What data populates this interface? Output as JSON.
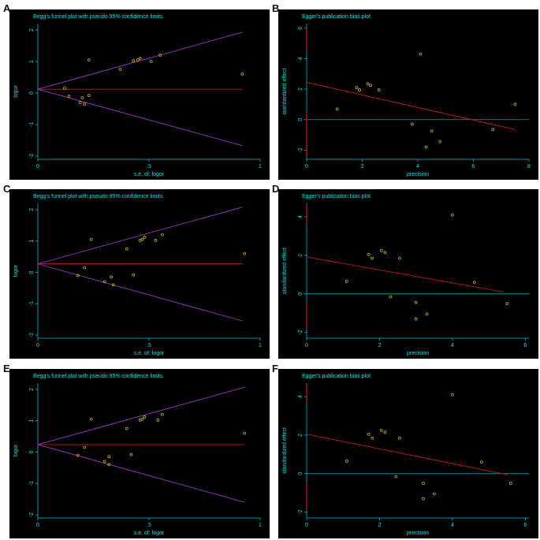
{
  "colors": {
    "background": "#000000",
    "text": "#00e5ee",
    "axis": "#00bcd4",
    "funnel_lines": "#a033c8",
    "reference_line": "#c41a1a",
    "regression_line": "#c41a1a",
    "zero_line": "#00a0b0",
    "points": "#c8b000"
  },
  "chart_data": [
    {
      "panel": "A",
      "type": "scatter",
      "title": "Begg's funnel plot with pseudo 95% confidence limits",
      "xlabel": "s.e. of: logor",
      "ylabel": "logor",
      "xlim": [
        0,
        1
      ],
      "ylim": [
        -2.1,
        2.2
      ],
      "xticks": [
        0,
        0.5,
        1
      ],
      "xtick_labels": [
        "0",
        ".5",
        "1"
      ],
      "yticks": [
        -2,
        -1,
        0,
        1,
        2
      ],
      "ytick_labels": [
        "-2",
        "-1",
        "0",
        "1",
        "2"
      ],
      "reference_value": 0.12,
      "funnel_x_end": 0.92,
      "funnel_upper_end": 1.93,
      "funnel_lower_end": -1.67,
      "points": [
        {
          "x": 0.12,
          "y": 0.15
        },
        {
          "x": 0.14,
          "y": -0.1
        },
        {
          "x": 0.19,
          "y": -0.3
        },
        {
          "x": 0.2,
          "y": -0.15
        },
        {
          "x": 0.21,
          "y": -0.35
        },
        {
          "x": 0.23,
          "y": -0.08
        },
        {
          "x": 0.23,
          "y": 1.05
        },
        {
          "x": 0.37,
          "y": 0.75
        },
        {
          "x": 0.43,
          "y": 1.02
        },
        {
          "x": 0.45,
          "y": 1.05
        },
        {
          "x": 0.46,
          "y": 1.1
        },
        {
          "x": 0.51,
          "y": 1.0
        },
        {
          "x": 0.55,
          "y": 1.2
        },
        {
          "x": 0.92,
          "y": 0.6
        }
      ]
    },
    {
      "panel": "B",
      "type": "scatter",
      "title": "Egger's publication bias plot",
      "xlabel": "precision",
      "ylabel": "standardized effect",
      "xlim": [
        0,
        8
      ],
      "ylim": [
        -2.6,
        6.3
      ],
      "xticks": [
        0,
        2,
        4,
        6,
        8
      ],
      "xtick_labels": [
        "0",
        "2",
        "4",
        "6",
        "8"
      ],
      "yticks": [
        -2,
        0,
        2,
        4,
        6
      ],
      "ytick_labels": [
        "-2",
        "0",
        "2",
        "4",
        "6"
      ],
      "ci_segments": [
        [
          4.5,
          6
        ],
        [
          -2.5,
          0.4
        ]
      ],
      "regression": [
        {
          "x": 0,
          "y": 2.45
        },
        {
          "x": 7.5,
          "y": -0.65
        }
      ],
      "points": [
        {
          "x": 1.1,
          "y": 0.7
        },
        {
          "x": 1.8,
          "y": 2.1
        },
        {
          "x": 1.9,
          "y": 1.95
        },
        {
          "x": 2.2,
          "y": 2.35
        },
        {
          "x": 2.3,
          "y": 2.25
        },
        {
          "x": 2.6,
          "y": 1.95
        },
        {
          "x": 3.8,
          "y": -0.3
        },
        {
          "x": 4.1,
          "y": 4.3
        },
        {
          "x": 4.3,
          "y": -1.8
        },
        {
          "x": 4.5,
          "y": -0.75
        },
        {
          "x": 4.8,
          "y": -1.45
        },
        {
          "x": 6.7,
          "y": -0.65
        },
        {
          "x": 7.5,
          "y": 1.0
        }
      ]
    },
    {
      "panel": "C",
      "type": "scatter",
      "title": "Begg's funnel plot with pseudo 95% confidence limits",
      "xlabel": "s.e. of: logor",
      "ylabel": "logor",
      "xlim": [
        0,
        1
      ],
      "ylim": [
        -2.1,
        2.2
      ],
      "xticks": [
        0,
        0.5,
        1
      ],
      "xtick_labels": [
        "0",
        ".5",
        "1"
      ],
      "yticks": [
        -2,
        -1,
        0,
        1,
        2
      ],
      "ytick_labels": [
        "-2",
        "-1",
        "0",
        "1",
        "2"
      ],
      "reference_value": 0.27,
      "funnel_x_end": 0.92,
      "funnel_upper_end": 2.08,
      "funnel_lower_end": -1.55,
      "points": [
        {
          "x": 0.18,
          "y": -0.1
        },
        {
          "x": 0.21,
          "y": 0.15
        },
        {
          "x": 0.24,
          "y": 1.05
        },
        {
          "x": 0.3,
          "y": -0.3
        },
        {
          "x": 0.33,
          "y": -0.15
        },
        {
          "x": 0.34,
          "y": -0.4
        },
        {
          "x": 0.4,
          "y": 0.75
        },
        {
          "x": 0.43,
          "y": -0.08
        },
        {
          "x": 0.46,
          "y": 1.02
        },
        {
          "x": 0.47,
          "y": 1.05
        },
        {
          "x": 0.48,
          "y": 1.12
        },
        {
          "x": 0.53,
          "y": 1.02
        },
        {
          "x": 0.56,
          "y": 1.2
        },
        {
          "x": 0.93,
          "y": 0.6
        }
      ]
    },
    {
      "panel": "D",
      "type": "scatter",
      "title": "Egger's publication bias plot",
      "xlabel": "precision",
      "ylabel": "standardized effect",
      "xlim": [
        0,
        6.1
      ],
      "ylim": [
        -2.3,
        4.7
      ],
      "xticks": [
        0,
        2,
        4,
        6
      ],
      "xtick_labels": [
        "0",
        "2",
        "4",
        "6"
      ],
      "yticks": [
        -2,
        0,
        2,
        4
      ],
      "ytick_labels": [
        "-2",
        "0",
        "2",
        "4"
      ],
      "ci_segments": [
        [
          3.6,
          4.6
        ],
        [
          -1.8,
          -0.5
        ]
      ],
      "regression": [
        {
          "x": 0,
          "y": 1.92
        },
        {
          "x": 5.4,
          "y": 0.1
        }
      ],
      "points": [
        {
          "x": 1.1,
          "y": 0.65
        },
        {
          "x": 1.7,
          "y": 2.05
        },
        {
          "x": 1.8,
          "y": 1.85
        },
        {
          "x": 2.05,
          "y": 2.25
        },
        {
          "x": 2.15,
          "y": 2.15
        },
        {
          "x": 2.3,
          "y": -0.15
        },
        {
          "x": 2.55,
          "y": 1.85
        },
        {
          "x": 3.0,
          "y": -0.45
        },
        {
          "x": 3.0,
          "y": -1.3
        },
        {
          "x": 3.3,
          "y": -1.05
        },
        {
          "x": 4.0,
          "y": 4.1
        },
        {
          "x": 4.6,
          "y": 0.6
        },
        {
          "x": 5.5,
          "y": -0.5
        }
      ]
    },
    {
      "panel": "E",
      "type": "scatter",
      "title": "Begg's funnel plot with pseudo 95% confidence limits",
      "xlabel": "s.e. of: logor",
      "ylabel": "logor",
      "xlim": [
        0,
        1
      ],
      "ylim": [
        -2.1,
        2.2
      ],
      "xticks": [
        0,
        0.5,
        1
      ],
      "xtick_labels": [
        "0",
        ".5",
        "1"
      ],
      "yticks": [
        -2,
        -1,
        0,
        1,
        2
      ],
      "ytick_labels": [
        "-2",
        "-1",
        "0",
        "1",
        "2"
      ],
      "reference_value": 0.24,
      "funnel_x_end": 0.93,
      "funnel_upper_end": 2.07,
      "funnel_lower_end": -1.6,
      "points": [
        {
          "x": 0.18,
          "y": -0.1
        },
        {
          "x": 0.21,
          "y": 0.15
        },
        {
          "x": 0.24,
          "y": 1.05
        },
        {
          "x": 0.3,
          "y": -0.3
        },
        {
          "x": 0.32,
          "y": -0.15
        },
        {
          "x": 0.32,
          "y": -0.4
        },
        {
          "x": 0.4,
          "y": 0.75
        },
        {
          "x": 0.42,
          "y": -0.08
        },
        {
          "x": 0.46,
          "y": 1.02
        },
        {
          "x": 0.47,
          "y": 1.05
        },
        {
          "x": 0.48,
          "y": 1.12
        },
        {
          "x": 0.54,
          "y": 1.02
        },
        {
          "x": 0.56,
          "y": 1.2
        },
        {
          "x": 0.93,
          "y": 0.6
        }
      ]
    },
    {
      "panel": "F",
      "type": "scatter",
      "title": "Egger's publication bias plot",
      "xlabel": "precision",
      "ylabel": "standardized effect",
      "xlim": [
        0,
        6.1
      ],
      "ylim": [
        -2.3,
        4.7
      ],
      "xticks": [
        0,
        2,
        4,
        6
      ],
      "xtick_labels": [
        "0",
        "2",
        "4",
        "6"
      ],
      "yticks": [
        -2,
        0,
        2,
        4
      ],
      "ytick_labels": [
        "-2",
        "0",
        "2",
        "4"
      ],
      "ci_segments": [
        [
          3.7,
          4.6
        ],
        [
          -1.9,
          -0.5
        ]
      ],
      "regression": [
        {
          "x": 0,
          "y": 2.05
        },
        {
          "x": 5.5,
          "y": -0.05
        }
      ],
      "points": [
        {
          "x": 1.1,
          "y": 0.65
        },
        {
          "x": 1.7,
          "y": 2.05
        },
        {
          "x": 1.8,
          "y": 1.85
        },
        {
          "x": 2.05,
          "y": 2.25
        },
        {
          "x": 2.15,
          "y": 2.15
        },
        {
          "x": 2.45,
          "y": -0.15
        },
        {
          "x": 2.55,
          "y": 1.85
        },
        {
          "x": 3.2,
          "y": -0.5
        },
        {
          "x": 3.2,
          "y": -1.3
        },
        {
          "x": 3.5,
          "y": -1.05
        },
        {
          "x": 4.0,
          "y": 4.1
        },
        {
          "x": 4.8,
          "y": 0.6
        },
        {
          "x": 5.6,
          "y": -0.5
        }
      ]
    }
  ]
}
